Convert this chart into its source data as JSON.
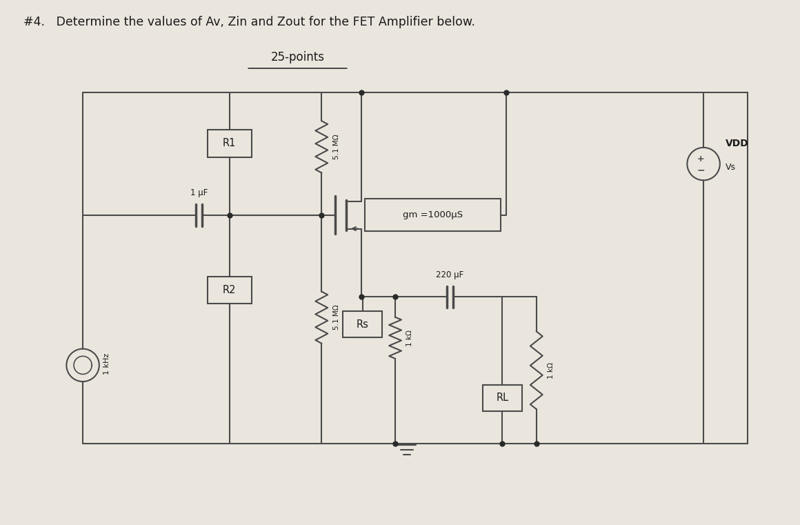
{
  "title": "#4.   Determine the values of Av, Zin and Zout for the FET Amplifier below.",
  "subtitle": "25-points",
  "bg_color": "#eae6de",
  "line_color": "#4a4a4a",
  "text_color": "#1a1a1a",
  "R1_label": "R1",
  "R2_label": "R2",
  "Rs_label": "Rs",
  "RL_label": "RL",
  "R1_ohm": "5.1 MΩ",
  "R2_ohm": "5.1 MΩ",
  "Rs_ohm": "1 kΩ",
  "RL_ohm": "1 kΩ",
  "cap1_label": "1 μF",
  "cap2_label": "220 μF",
  "freq_label": "1 kHz",
  "gm_label": "gm =1000μS",
  "vdd_label": "VDD",
  "vs_label": "Vs"
}
